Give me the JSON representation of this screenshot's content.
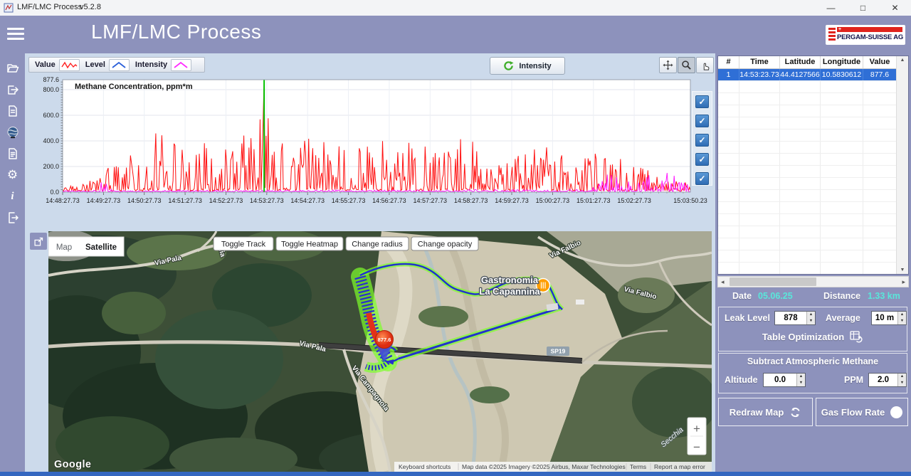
{
  "titlebar": {
    "app": "LMF/LMC Process",
    "version": "v5.2.8",
    "minimize": "—",
    "maximize": "□",
    "close": "✕"
  },
  "header": {
    "title": "LMF/LMC Process",
    "brand": "PERGAM-SUISSE AG"
  },
  "sidebar": {
    "icons": [
      "open-file",
      "export",
      "document",
      "google-earth",
      "report-file",
      "settings",
      "info",
      "exit"
    ]
  },
  "chart": {
    "legend": [
      {
        "label": "Value",
        "color": "#ff2020"
      },
      {
        "label": "Level",
        "color": "#2b5fd9"
      },
      {
        "label": "Intensity",
        "color": "#ff2bff"
      }
    ],
    "intensity_button": "Intensity",
    "toolbar": [
      {
        "name": "pan",
        "selected": false
      },
      {
        "name": "zoom",
        "selected": true
      },
      {
        "name": "hand",
        "selected": false
      }
    ],
    "title": "Methane Concentration,  ppm*m",
    "checkbox_count": 5
  },
  "chart_data": {
    "type": "line",
    "title": "Methane Concentration, ppm*m",
    "ylabel": "ppm*m",
    "ylim": [
      0,
      877.6
    ],
    "y_ticks": [
      "877.6",
      "800.0",
      "600.0",
      "400.0",
      "200.0",
      "0.0"
    ],
    "x_ticks": [
      "14:48:27.73",
      "14:49:27.73",
      "14:50:27.73",
      "14:51:27.73",
      "14:52:27.73",
      "14:53:27.73",
      "14:54:27.73",
      "14:55:27.73",
      "14:56:27.73",
      "14:57:27.73",
      "14:58:27.73",
      "14:59:27.73",
      "15:00:27.73",
      "15:01:27.73",
      "15:02:27.73"
    ],
    "x_end_label": "15:03:50.23",
    "cursor": {
      "time": "14:53:23.73",
      "fraction": 0.321,
      "color": "#00c400"
    },
    "peak": {
      "value": 877.6,
      "time": "14:53:23.73"
    },
    "series": [
      {
        "name": "Value",
        "color": "#ff1010",
        "seed": 1337,
        "visible": true,
        "base": 4,
        "jitter": 9,
        "forcePeak": true,
        "envelope": [
          [
            0,
            0.05
          ],
          [
            0.03,
            0.08
          ],
          [
            0.05,
            0.14
          ],
          [
            0.09,
            0.3
          ],
          [
            0.12,
            0.44
          ],
          [
            0.15,
            0.52
          ],
          [
            0.18,
            0.42
          ],
          [
            0.21,
            0.52
          ],
          [
            0.24,
            0.38
          ],
          [
            0.27,
            0.48
          ],
          [
            0.3,
            0.54
          ],
          [
            0.32,
            0.72
          ],
          [
            0.35,
            0.5
          ],
          [
            0.4,
            0.46
          ],
          [
            0.45,
            0.42
          ],
          [
            0.5,
            0.48
          ],
          [
            0.55,
            0.44
          ],
          [
            0.6,
            0.36
          ],
          [
            0.64,
            0.5
          ],
          [
            0.68,
            0.36
          ],
          [
            0.72,
            0.3
          ],
          [
            0.76,
            0.44
          ],
          [
            0.8,
            0.3
          ],
          [
            0.84,
            0.36
          ],
          [
            0.88,
            0.3
          ],
          [
            0.92,
            0.28
          ],
          [
            0.95,
            0.14
          ],
          [
            1,
            0.08
          ]
        ]
      },
      {
        "name": "Level",
        "color": "#2b5fd9",
        "seed": 2,
        "visible": false,
        "base": 0,
        "jitter": 0,
        "forcePeak": false,
        "envelope": [
          [
            0,
            0
          ],
          [
            1,
            0
          ]
        ]
      },
      {
        "name": "Intensity",
        "color": "#ff18ff",
        "seed": 77,
        "visible": true,
        "base": 2,
        "jitter": 4,
        "forcePeak": false,
        "envelope": [
          [
            0,
            0.01
          ],
          [
            0.055,
            0.013
          ],
          [
            0.065,
            0.13
          ],
          [
            0.08,
            0.012
          ],
          [
            0.5,
            0.015
          ],
          [
            0.84,
            0.02
          ],
          [
            0.87,
            0.18
          ],
          [
            0.91,
            0.12
          ],
          [
            0.945,
            0.26
          ],
          [
            0.97,
            0.18
          ],
          [
            1,
            0.05
          ]
        ]
      }
    ]
  },
  "table": {
    "columns": [
      "#",
      "Time",
      "Latitude",
      "Longitude",
      "Value"
    ],
    "rows": [
      [
        "1",
        "14:53:23.73",
        "44.4127566",
        "10.5830612",
        "877.6"
      ]
    ],
    "empty_row_count": 17
  },
  "map": {
    "type_controls": {
      "map": "Map",
      "satellite": "Satellite"
    },
    "buttons": {
      "toggle_track": "Toggle Track",
      "toggle_heatmap": "Toggle Heatmap",
      "change_radius": "Change radius",
      "change_opacity": "Change opacity"
    },
    "labels": {
      "via_pala_1": "Via Pala",
      "rocchia": "cchia",
      "via_pala_2": "Via Pala",
      "via_campagnola": "Via Campagnola",
      "via_falbio_1": "Via Falbio",
      "via_falbio_2": "Via Falbio",
      "sp19": "SP19",
      "secchia": "Secchia",
      "poi_line1": "Gastronomia",
      "poi_line2": "La Capannina",
      "marker_value": "877.6",
      "google": "Google",
      "zoom_in": "+",
      "zoom_out": "−"
    },
    "attribution": {
      "shortcuts": "Keyboard shortcuts",
      "map_data": "Map data ©2025  Imagery ©2025 Airbus, Maxar Technologies",
      "terms": "Terms",
      "report": "Report a map error"
    }
  },
  "panel": {
    "date_label": "Date",
    "date_value": "05.06.25",
    "distance_label": "Distance",
    "distance_value": "1.33 km",
    "leak_level_label": "Leak Level",
    "leak_level_value": "878",
    "average_label": "Average",
    "average_value": "10 m",
    "table_optimization": "Table Optimization",
    "subtract_title": "Subtract Atmospheric Methane",
    "altitude_label": "Altitude",
    "altitude_value": "0.0",
    "ppm_label": "PPM",
    "ppm_value": "2.0",
    "redraw_map": "Redraw Map",
    "gas_flow_rate": "Gas Flow Rate"
  },
  "colors": {
    "accent_purple": "#8d92bc",
    "content_bg": "#ccdaeb",
    "selected_row": "#2f6fd6",
    "cyan_value": "#59e7da",
    "checkbox_blue": "#2f6cb4",
    "cursor_green": "#00c400",
    "bottom_bar": "#3467c0"
  }
}
